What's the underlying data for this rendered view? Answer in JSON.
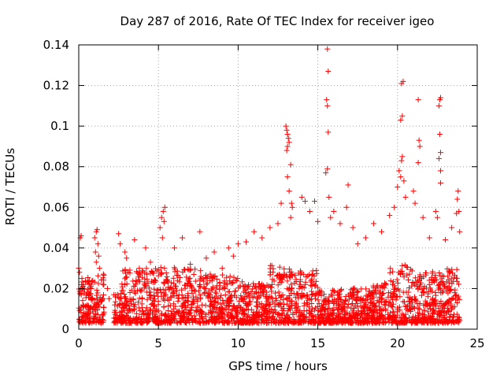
{
  "chart_data": {
    "type": "scatter",
    "title": "Day 287 of 2016, Rate Of TEC Index for receiver igeo",
    "xlabel": "GPS time / hours",
    "ylabel": "ROTI / TECUs",
    "xlim": [
      0,
      25
    ],
    "ylim": [
      0,
      0.14
    ],
    "x_ticks": [
      0,
      5,
      10,
      15,
      20,
      25
    ],
    "x_tick_labels": [
      "0",
      "5",
      "10",
      "15",
      "20",
      "25"
    ],
    "y_ticks": [
      0,
      0.02,
      0.04,
      0.06,
      0.08,
      0.1,
      0.12,
      0.14
    ],
    "y_tick_labels": [
      "0",
      "0.02",
      "0.04",
      "0.06",
      "0.08",
      "0.1",
      "0.12",
      "0.14"
    ],
    "grid": true,
    "marker": "+",
    "marker_color": "#ff0000",
    "series": [
      {
        "name": "ROTI",
        "points": [
          [
            0.0,
            0.03
          ],
          [
            0.05,
            0.028
          ],
          [
            0.1,
            0.045
          ],
          [
            0.15,
            0.046
          ],
          [
            0.2,
            0.025
          ],
          [
            0.3,
            0.02
          ],
          [
            1.0,
            0.045
          ],
          [
            1.1,
            0.048
          ],
          [
            1.15,
            0.049
          ],
          [
            1.2,
            0.042
          ],
          [
            1.25,
            0.036
          ],
          [
            1.3,
            0.03
          ],
          [
            1.05,
            0.038
          ],
          [
            1.1,
            0.033
          ],
          [
            1.8,
            0.02
          ],
          [
            1.9,
            0.015
          ],
          [
            2.5,
            0.047
          ],
          [
            2.6,
            0.042
          ],
          [
            2.9,
            0.038
          ],
          [
            3.0,
            0.035
          ],
          [
            3.5,
            0.044
          ],
          [
            3.8,
            0.03
          ],
          [
            4.2,
            0.04
          ],
          [
            4.5,
            0.033
          ],
          [
            5.1,
            0.05
          ],
          [
            5.2,
            0.055
          ],
          [
            5.3,
            0.058
          ],
          [
            5.4,
            0.06
          ],
          [
            5.35,
            0.053
          ],
          [
            5.25,
            0.045
          ],
          [
            6.0,
            0.04
          ],
          [
            6.5,
            0.045
          ],
          [
            7.0,
            0.032
          ],
          [
            7.6,
            0.048
          ],
          [
            8.0,
            0.035
          ],
          [
            8.5,
            0.038
          ],
          [
            9.0,
            0.03
          ],
          [
            9.4,
            0.04
          ],
          [
            9.7,
            0.036
          ],
          [
            10.0,
            0.042
          ],
          [
            10.5,
            0.043
          ],
          [
            11.0,
            0.048
          ],
          [
            11.5,
            0.045
          ],
          [
            12.0,
            0.05
          ],
          [
            12.5,
            0.052
          ],
          [
            12.7,
            0.062
          ],
          [
            13.0,
            0.1
          ],
          [
            13.05,
            0.098
          ],
          [
            13.1,
            0.096
          ],
          [
            13.15,
            0.094
          ],
          [
            13.2,
            0.092
          ],
          [
            13.1,
            0.09
          ],
          [
            13.05,
            0.088
          ],
          [
            13.3,
            0.081
          ],
          [
            13.1,
            0.075
          ],
          [
            13.2,
            0.068
          ],
          [
            13.35,
            0.062
          ],
          [
            13.4,
            0.06
          ],
          [
            13.3,
            0.055
          ],
          [
            14.0,
            0.065
          ],
          [
            14.2,
            0.063
          ],
          [
            14.5,
            0.058
          ],
          [
            14.8,
            0.063
          ],
          [
            15.0,
            0.053
          ],
          [
            15.6,
            0.138
          ],
          [
            15.65,
            0.127
          ],
          [
            15.55,
            0.113
          ],
          [
            15.6,
            0.11
          ],
          [
            15.65,
            0.097
          ],
          [
            15.6,
            0.079
          ],
          [
            15.5,
            0.077
          ],
          [
            15.7,
            0.065
          ],
          [
            15.8,
            0.055
          ],
          [
            16.0,
            0.058
          ],
          [
            16.4,
            0.052
          ],
          [
            16.8,
            0.06
          ],
          [
            16.9,
            0.071
          ],
          [
            17.2,
            0.05
          ],
          [
            17.5,
            0.042
          ],
          [
            18.0,
            0.045
          ],
          [
            18.5,
            0.052
          ],
          [
            19.0,
            0.048
          ],
          [
            19.5,
            0.056
          ],
          [
            19.8,
            0.06
          ],
          [
            20.0,
            0.07
          ],
          [
            20.1,
            0.078
          ],
          [
            20.2,
            0.075
          ],
          [
            20.25,
            0.083
          ],
          [
            20.3,
            0.085
          ],
          [
            20.2,
            0.103
          ],
          [
            20.3,
            0.105
          ],
          [
            20.25,
            0.121
          ],
          [
            20.35,
            0.122
          ],
          [
            20.4,
            0.073
          ],
          [
            20.5,
            0.065
          ],
          [
            21.0,
            0.068
          ],
          [
            21.1,
            0.062
          ],
          [
            21.3,
            0.113
          ],
          [
            21.35,
            0.093
          ],
          [
            21.4,
            0.09
          ],
          [
            21.3,
            0.082
          ],
          [
            21.6,
            0.055
          ],
          [
            22.0,
            0.045
          ],
          [
            22.4,
            0.058
          ],
          [
            22.5,
            0.055
          ],
          [
            22.6,
            0.11
          ],
          [
            22.65,
            0.113
          ],
          [
            22.7,
            0.114
          ],
          [
            22.65,
            0.096
          ],
          [
            22.7,
            0.087
          ],
          [
            22.6,
            0.084
          ],
          [
            22.7,
            0.078
          ],
          [
            22.7,
            0.072
          ],
          [
            23.0,
            0.044
          ],
          [
            23.4,
            0.05
          ],
          [
            23.7,
            0.057
          ],
          [
            23.75,
            0.064
          ],
          [
            23.8,
            0.068
          ],
          [
            23.85,
            0.058
          ],
          [
            23.9,
            0.048
          ]
        ]
      }
    ]
  }
}
